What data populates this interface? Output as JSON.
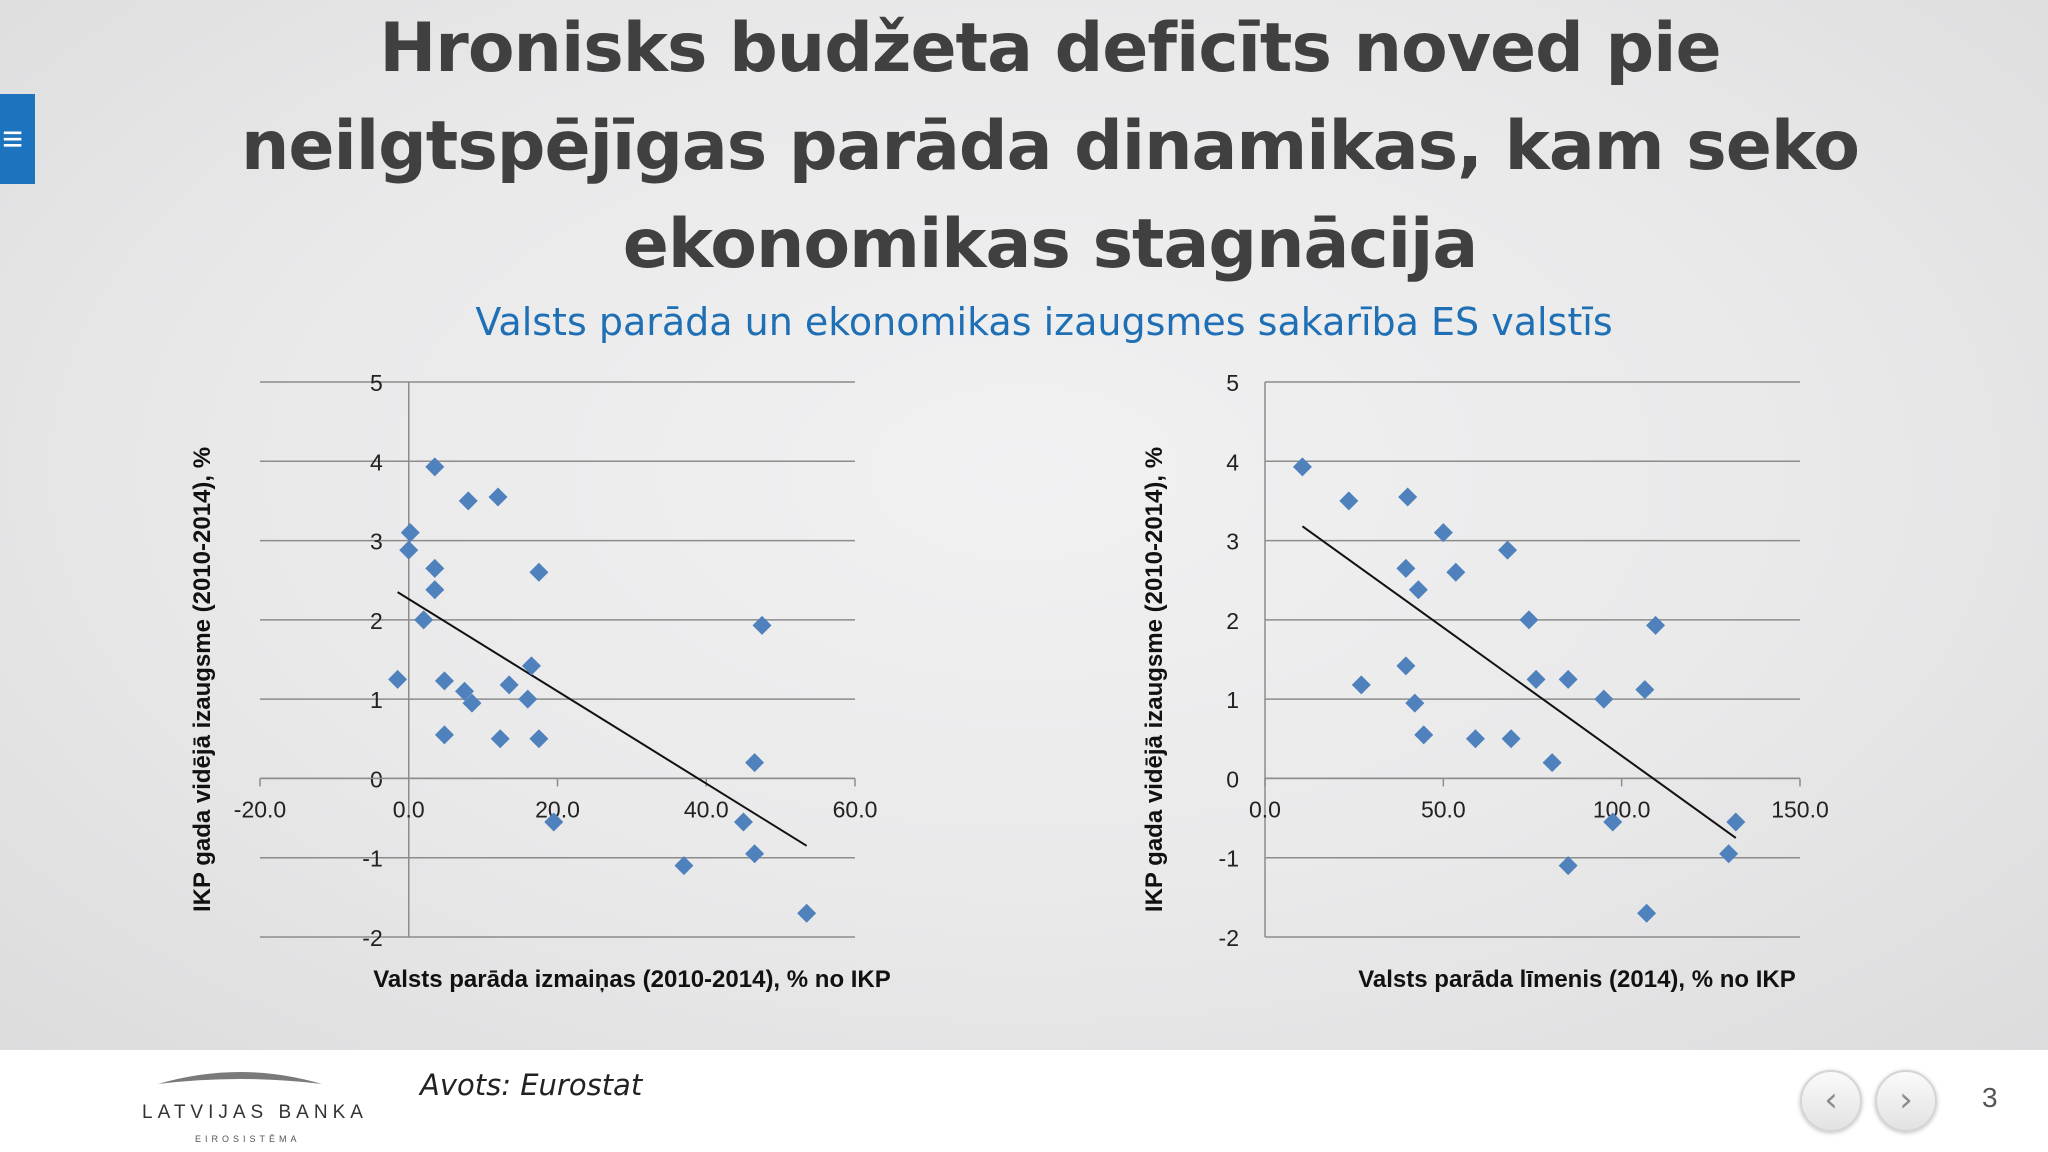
{
  "title_lines": [
    "Hronisks budžeta deficīts noved pie",
    "neilgtspējīgas parāda dinamikas, kam seko",
    "ekonomikas stagnācija"
  ],
  "subtitle": "Valsts parāda un ekonomikas izaugsmes sakarība ES valstīs",
  "menu_icon": "≡",
  "source": "Avots: Eurostat",
  "logo": {
    "name": "LATVIJAS BANKA",
    "sub": "EIROSISTĒMA"
  },
  "nav": {
    "prev_icon": "‹",
    "next_icon": "›"
  },
  "page_number": "3",
  "colors": {
    "title": "#404040",
    "subtitle": "#1f6fb5",
    "marker": "#4f81bd",
    "accent": "#1e73be"
  },
  "chart_data": [
    {
      "type": "scatter",
      "xlabel": "Valsts parāda izmaiņas (2010-2014), % no IKP",
      "ylabel": "IKP gada vidējā izaugsme (2010-2014), %",
      "xlim": [
        -20,
        60
      ],
      "ylim": [
        -2,
        5
      ],
      "xticks": [
        "-20.0",
        "0.0",
        "20.0",
        "40.0",
        "60.0"
      ],
      "yticks": [
        "-2",
        "-1",
        "0",
        "1",
        "2",
        "3",
        "4",
        "5"
      ],
      "grid": "horizontal",
      "marker": "diamond",
      "trendline": {
        "x": [
          -1.5,
          53.5
        ],
        "y": [
          2.35,
          -0.85
        ]
      },
      "points": [
        [
          3.5,
          3.93
        ],
        [
          8,
          3.5
        ],
        [
          12,
          3.55
        ],
        [
          0.2,
          3.1
        ],
        [
          0,
          2.88
        ],
        [
          3.5,
          2.65
        ],
        [
          17.5,
          2.6
        ],
        [
          3.5,
          2.38
        ],
        [
          2,
          2.0
        ],
        [
          -1.5,
          1.25
        ],
        [
          4.8,
          1.23
        ],
        [
          7.5,
          1.1
        ],
        [
          8.5,
          0.95
        ],
        [
          13.5,
          1.18
        ],
        [
          16.5,
          1.42
        ],
        [
          16,
          1.0
        ],
        [
          4.8,
          0.55
        ],
        [
          12.3,
          0.5
        ],
        [
          17.5,
          0.5
        ],
        [
          19.5,
          -0.55
        ],
        [
          47.5,
          1.93
        ],
        [
          46.5,
          0.2
        ],
        [
          45,
          -0.55
        ],
        [
          46.5,
          -0.95
        ],
        [
          37,
          -1.1
        ],
        [
          53.5,
          -1.7
        ]
      ]
    },
    {
      "type": "scatter",
      "xlabel": "Valsts parāda līmenis (2014), % no IKP",
      "ylabel": "IKP gada vidējā izaugsme (2010-2014), %",
      "xlim": [
        0,
        150
      ],
      "ylim": [
        -2,
        5
      ],
      "xticks": [
        "0.0",
        "50.0",
        "100.0",
        "150.0"
      ],
      "yticks": [
        "-2",
        "-1",
        "0",
        "1",
        "2",
        "3",
        "4",
        "5"
      ],
      "grid": "horizontal",
      "marker": "diamond",
      "trendline": {
        "x": [
          10.5,
          132
        ],
        "y": [
          3.18,
          -0.75
        ]
      },
      "points": [
        [
          10.5,
          3.93
        ],
        [
          23.5,
          3.5
        ],
        [
          40,
          3.55
        ],
        [
          50,
          3.1
        ],
        [
          68,
          2.88
        ],
        [
          39.5,
          2.65
        ],
        [
          53.5,
          2.6
        ],
        [
          43,
          2.38
        ],
        [
          74,
          2.0
        ],
        [
          27,
          1.18
        ],
        [
          39.5,
          1.42
        ],
        [
          42,
          0.95
        ],
        [
          76,
          1.25
        ],
        [
          85,
          1.25
        ],
        [
          95,
          1.0
        ],
        [
          106.5,
          1.12
        ],
        [
          109.5,
          1.93
        ],
        [
          44.5,
          0.55
        ],
        [
          59,
          0.5
        ],
        [
          69,
          0.5
        ],
        [
          80.5,
          0.2
        ],
        [
          97.5,
          -0.55
        ],
        [
          132,
          -0.55
        ],
        [
          130,
          -0.95
        ],
        [
          85,
          -1.1
        ],
        [
          107,
          -1.7
        ]
      ]
    }
  ]
}
